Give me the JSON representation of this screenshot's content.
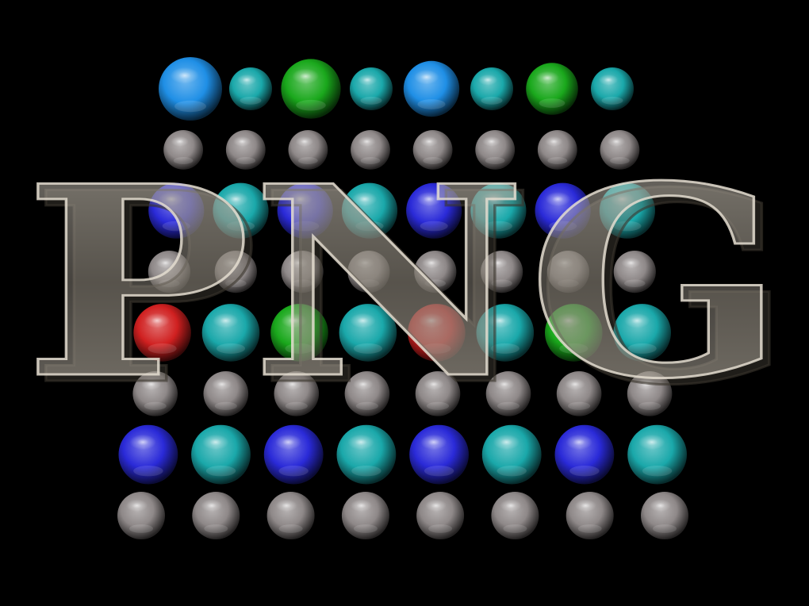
{
  "scene": {
    "background": "#000000",
    "logo_text": "PNG",
    "logo_color": "#b9b1a4",
    "rows": [
      {
        "type": "colored",
        "colors": [
          "#1f8fe6",
          "#1aa8aa",
          "#1aa81c",
          "#1aa8aa",
          "#1f8fe6",
          "#1aa8aa",
          "#1aa81c",
          "#1aa8aa"
        ]
      },
      {
        "type": "gray",
        "colors": [
          "#8e8888",
          "#8e8888",
          "#8e8888",
          "#8e8888",
          "#8e8888",
          "#8e8888",
          "#8e8888",
          "#8e8888"
        ]
      },
      {
        "type": "colored",
        "colors": [
          "#2a2ad8",
          "#1aa8aa",
          "#2a2ad8",
          "#1aa8aa",
          "#2a2ad8",
          "#1aa8aa",
          "#2a2ad8",
          "#1aa8aa"
        ]
      },
      {
        "type": "gray",
        "colors": [
          "#8e8888",
          "#8e8888",
          "#8e8888",
          "#8e8888",
          "#8e8888",
          "#8e8888",
          "#8e8888",
          "#8e8888"
        ]
      },
      {
        "type": "colored",
        "colors": [
          "#d02020",
          "#1aa8aa",
          "#1aa81c",
          "#1aa8aa",
          "#d02020",
          "#1aa8aa",
          "#1aa81c",
          "#1aa8aa"
        ]
      },
      {
        "type": "gray",
        "colors": [
          "#8e8888",
          "#8e8888",
          "#8e8888",
          "#8e8888",
          "#8e8888",
          "#8e8888",
          "#8e8888",
          "#8e8888"
        ]
      },
      {
        "type": "colored",
        "colors": [
          "#2a2ad8",
          "#1aa8aa",
          "#2a2ad8",
          "#1aa8aa",
          "#2a2ad8",
          "#1aa8aa",
          "#2a2ad8",
          "#1aa8aa"
        ]
      },
      {
        "type": "gray",
        "colors": [
          "#8e8888",
          "#8e8888",
          "#8e8888",
          "#8e8888",
          "#8e8888",
          "#8e8888",
          "#8e8888",
          "#8e8888"
        ]
      }
    ]
  }
}
